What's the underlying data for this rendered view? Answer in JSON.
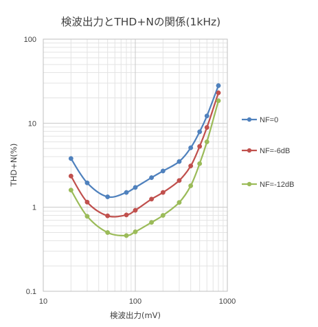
{
  "chart_data": {
    "type": "line",
    "title": "検波出力とTHD+Nの関係(1kHz)",
    "xlabel": "検波出力(mV)",
    "ylabel": "THD+N(%)",
    "xscale": "log",
    "yscale": "log",
    "xlim": [
      10,
      1000
    ],
    "ylim": [
      0.1,
      100
    ],
    "x_ticks": [
      "10",
      "100",
      "1000"
    ],
    "y_ticks": [
      "0.1",
      "1",
      "10",
      "100"
    ],
    "grid": true,
    "legend_position": "right",
    "x": [
      20,
      30,
      50,
      80,
      100,
      150,
      200,
      300,
      400,
      500,
      600,
      800
    ],
    "series": [
      {
        "name": "NF=0",
        "color": "#4f81bd",
        "values": [
          3.8,
          1.95,
          1.33,
          1.5,
          1.72,
          2.25,
          2.7,
          3.5,
          5.1,
          7.9,
          12.2,
          28
        ]
      },
      {
        "name": "NF=-6dB",
        "color": "#c0504d",
        "values": [
          2.35,
          1.15,
          0.79,
          0.81,
          0.92,
          1.25,
          1.5,
          2.08,
          3.1,
          5.3,
          8.9,
          23
        ]
      },
      {
        "name": "NF=-12dB",
        "color": "#9bbb59",
        "values": [
          1.6,
          0.78,
          0.5,
          0.46,
          0.51,
          0.66,
          0.8,
          1.14,
          1.8,
          3.3,
          6.0,
          18.5
        ]
      }
    ]
  }
}
